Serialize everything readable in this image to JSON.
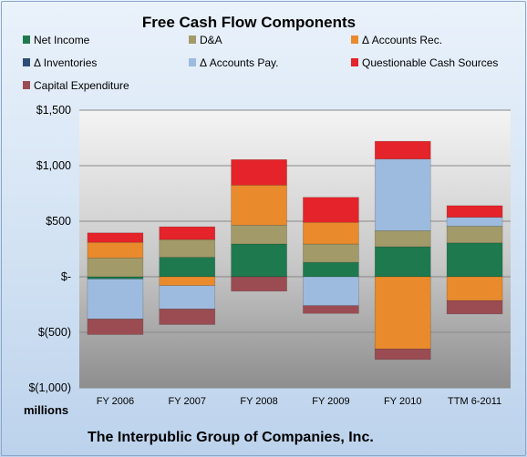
{
  "chart_data": {
    "type": "bar",
    "stacked": true,
    "title": "Free Cash Flow Components",
    "units_label": "millions",
    "company": "The Interpublic Group of Companies, Inc.",
    "categories": [
      "FY 2006",
      "FY 2007",
      "FY 2008",
      "FY 2009",
      "FY 2010",
      "TTM 6-2011"
    ],
    "ylim": [
      -1000,
      1500
    ],
    "yticks": [
      {
        "value": 1500,
        "label": "$1,500"
      },
      {
        "value": 1000,
        "label": "$1,000"
      },
      {
        "value": 500,
        "label": "$500"
      },
      {
        "value": 0,
        "label": "$-"
      },
      {
        "value": -500,
        "label": "$(500)"
      },
      {
        "value": -1000,
        "label": "$(1,000)"
      }
    ],
    "grid": true,
    "legend_position": "top",
    "series": [
      {
        "name": "Net Income",
        "color": "#1e7a4e",
        "values": [
          -20,
          175,
          295,
          130,
          270,
          305
        ]
      },
      {
        "name": "D&A",
        "color": "#a29a68",
        "values": [
          170,
          160,
          170,
          165,
          145,
          150
        ]
      },
      {
        "name": "Δ Accounts Rec.",
        "color": "#e98a2c",
        "values": [
          140,
          -80,
          360,
          195,
          -650,
          -215
        ]
      },
      {
        "name": "Δ Inventories",
        "color": "#2c4e75",
        "values": [
          0,
          0,
          0,
          0,
          0,
          0
        ]
      },
      {
        "name": "Δ Accounts Pay.",
        "color": "#9dbbde",
        "values": [
          -360,
          -210,
          0,
          -260,
          645,
          80
        ]
      },
      {
        "name": "Questionable Cash Sources",
        "color": "#e5232a",
        "values": [
          85,
          115,
          230,
          225,
          160,
          105
        ]
      },
      {
        "name": "Capital Expenditure",
        "color": "#9b4c52",
        "values": [
          -140,
          -140,
          -130,
          -70,
          -95,
          -120
        ]
      }
    ]
  }
}
